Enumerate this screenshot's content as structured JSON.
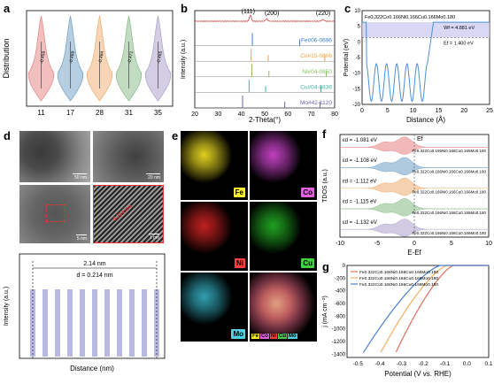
{
  "panel_labels": {
    "a": "a",
    "b": "b",
    "c": "c",
    "d": "d",
    "e": "e",
    "f": "f",
    "g": "g"
  },
  "chart_a": {
    "type": "violin",
    "ylabel": "Distribution",
    "categories": [
      "11",
      "17",
      "28",
      "31",
      "35"
    ],
    "annotations": [
      "-0.459",
      "-0.469",
      "-0.464",
      "-0.471",
      "-0.465"
    ],
    "colors": [
      "#e88a8a",
      "#7aa6c8",
      "#f0b27a",
      "#8fbf8f",
      "#b0a6cf"
    ]
  },
  "chart_b": {
    "type": "line",
    "ylabel": "Intensity (a.u.)",
    "xlabel": "2-Theta(°)",
    "xticks": [
      "20",
      "30",
      "40",
      "50",
      "60",
      "70",
      "80"
    ],
    "xlim": [
      20,
      80
    ],
    "peaks_labels": [
      "(111)",
      "(200)",
      "(220)"
    ],
    "refs": [
      {
        "name": "Fe#06-0696",
        "color": "#3a7fd0",
        "positions": [
          44.7,
          65.0
        ]
      },
      {
        "name": "Co#15-0806",
        "color": "#f0a040",
        "positions": [
          44.2,
          51.5,
          75.8
        ]
      },
      {
        "name": "Ni#04-0850",
        "color": "#8ac060",
        "positions": [
          44.5,
          51.8,
          76.4
        ]
      },
      {
        "name": "Cu#04-0836",
        "color": "#40b0a0",
        "positions": [
          43.3,
          50.4,
          74.1
        ]
      },
      {
        "name": "Mo#42-1120",
        "color": "#7060b0",
        "positions": [
          40.5,
          58.6,
          73.7
        ]
      }
    ]
  },
  "chart_c": {
    "type": "line",
    "title": "Fe0.322Co0.166Ni0.166Cu0.166Mo0.180",
    "ylabel": "Potential (eV)",
    "xlabel": "Distance (Å)",
    "xticks": [
      "0",
      "5",
      "10",
      "15",
      "20",
      "25"
    ],
    "yticks": [
      "-20",
      "-15",
      "-10",
      "-5",
      "0",
      "5",
      "10"
    ],
    "xlim": [
      0,
      25
    ],
    "ylim": [
      -20,
      10
    ],
    "work_function": "Wf = 4.881 eV",
    "fermi": "Ef = 1.400 eV",
    "vacuum_level": 6.3,
    "fermi_level": 1.4
  },
  "panel_d": {
    "scale_top_left": "50 nm",
    "scale_top_right": "20 nm",
    "scale_mid_left": "5 nm",
    "scale_mid_right": "1 nm",
    "lattice": "0.214 nm",
    "profile_width": "2.14 nm",
    "profile_d": "d = 0.214 nm",
    "ylabel": "Intensity (a.u.)",
    "xlabel": "Distance (nm)",
    "peak_count": 11
  },
  "panel_e": {
    "maps": [
      {
        "label": "Fe",
        "color": "#e0d020",
        "bg": "#ffee33"
      },
      {
        "label": "Co",
        "color": "#c040c0",
        "bg": "#e060e0"
      },
      {
        "label": "Ni",
        "color": "#c02020",
        "bg": "#ff4040"
      },
      {
        "label": "Cu",
        "color": "#20a020",
        "bg": "#40d040"
      },
      {
        "label": "Mo",
        "color": "#30a0b0",
        "bg": "#50d0e0"
      }
    ],
    "overlay_labels": [
      "Fe",
      "Co",
      "Ni",
      "Cu",
      "Mo"
    ]
  },
  "chart_f": {
    "type": "area",
    "ylabel": "TDOS (a.u.)",
    "xlabel": "E-Ef",
    "xticks": [
      "-10",
      "-5",
      "0",
      "5",
      "10"
    ],
    "fermi_label": "Ef",
    "rows": [
      {
        "ed": "εd = -1.081 eV",
        "formula": "Fe0.322Co0.166Ni0.166Cu0.166Mo0.180",
        "color": "#e88a8a"
      },
      {
        "ed": "εd = -1.108 eV",
        "formula": "Fe0.322Co0.166Ni0.166Cu0.166Mo0.180",
        "color": "#7aa6c8"
      },
      {
        "ed": "εd = -1.112 eV",
        "formula": "Fe0.322Co0.166Ni0.166Cu0.166Mo0.180",
        "color": "#f0b27a"
      },
      {
        "ed": "εd = -1.115 eV",
        "formula": "Fe0.322Co0.166Ni0.166Cu0.166Mo0.180",
        "color": "#8fbf8f"
      },
      {
        "ed": "εd = -1.132 eV",
        "formula": "Fe0.322Co0.166Ni0.166Cu0.166Mo0.180",
        "color": "#b0a6cf"
      }
    ]
  },
  "chart_g": {
    "type": "line",
    "ylabel": "j (mA cm⁻²)",
    "xlabel": "Potential (V vs. RHE)",
    "xticks": [
      "-0.5",
      "-0.4",
      "-0.3",
      "-0.2",
      "-0.1",
      "0.0",
      "0.1"
    ],
    "yticks": [
      "0",
      "-200",
      "-400",
      "-600",
      "-800",
      "-1000",
      "-1200",
      "-1400"
    ],
    "xlim": [
      -0.55,
      0.1
    ],
    "ylim": [
      -1450,
      0
    ],
    "legend": [
      {
        "name": "Fe0.322Co0.166Ni0.166Cu0.166Mo0.180",
        "color": "#e07060"
      },
      {
        "name": "Fe0.322Co0.166Ni0.166Cu0.166Mo0.180",
        "color": "#f0b060"
      },
      {
        "name": "Fe0.322Co0.166Ni0.166Cu0.166Mo0.180",
        "color": "#4a80d0"
      }
    ],
    "series": [
      {
        "onset": -0.06,
        "end": -0.33,
        "color": "#e07060"
      },
      {
        "onset": -0.09,
        "end": -0.4,
        "color": "#f0b060"
      },
      {
        "onset": -0.12,
        "end": -0.48,
        "color": "#4a80d0"
      }
    ]
  }
}
